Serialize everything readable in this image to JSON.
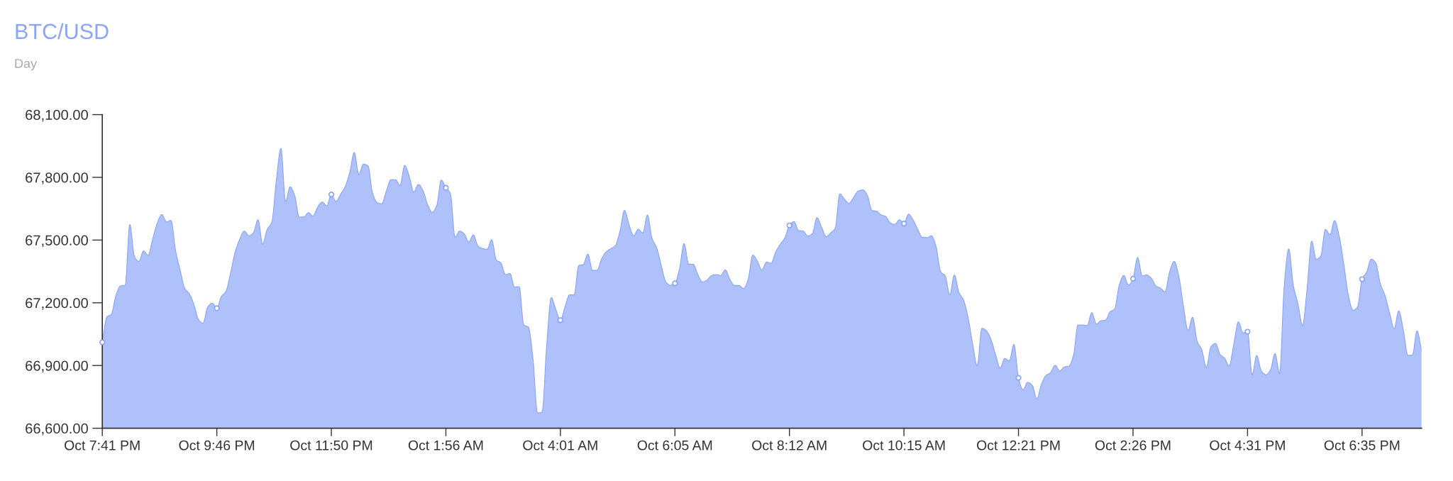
{
  "chart_data": {
    "type": "area",
    "title": "BTC/USD",
    "subtitle": "Day",
    "categories": [
      "Oct 7:41 PM",
      null,
      null,
      null,
      null,
      null,
      null,
      null,
      null,
      null,
      null,
      null,
      null,
      null,
      null,
      null,
      null,
      null,
      null,
      null,
      null,
      null,
      null,
      null,
      null,
      "Oct 9:46 PM",
      null,
      null,
      null,
      null,
      null,
      null,
      null,
      null,
      null,
      null,
      null,
      null,
      null,
      null,
      null,
      null,
      null,
      null,
      null,
      null,
      null,
      null,
      null,
      null,
      "Oct 11:50 PM",
      null,
      null,
      null,
      null,
      null,
      null,
      null,
      null,
      null,
      null,
      null,
      null,
      null,
      null,
      null,
      null,
      null,
      null,
      null,
      null,
      null,
      null,
      null,
      null,
      "Oct 1:56 AM",
      null,
      null,
      null,
      null,
      null,
      null,
      null,
      null,
      null,
      null,
      null,
      null,
      null,
      null,
      null,
      null,
      null,
      null,
      null,
      null,
      null,
      null,
      null,
      null,
      "Oct 4:01 AM",
      null,
      null,
      null,
      null,
      null,
      null,
      null,
      null,
      null,
      null,
      null,
      null,
      null,
      null,
      null,
      null,
      null,
      null,
      null,
      null,
      null,
      null,
      null,
      null,
      "Oct 6:05 AM",
      null,
      null,
      null,
      null,
      null,
      null,
      null,
      null,
      null,
      null,
      null,
      null,
      null,
      null,
      null,
      null,
      null,
      null,
      null,
      null,
      null,
      null,
      null,
      null,
      "Oct 8:12 AM",
      null,
      null,
      null,
      null,
      null,
      null,
      null,
      null,
      null,
      null,
      null,
      null,
      null,
      null,
      null,
      null,
      null,
      null,
      null,
      null,
      null,
      null,
      null,
      null,
      "Oct 10:15 AM",
      null,
      null,
      null,
      null,
      null,
      null,
      null,
      null,
      null,
      null,
      null,
      null,
      null,
      null,
      null,
      null,
      null,
      null,
      null,
      null,
      null,
      null,
      null,
      null,
      "Oct 12:21 PM",
      null,
      null,
      null,
      null,
      null,
      null,
      null,
      null,
      null,
      null,
      null,
      null,
      null,
      null,
      null,
      null,
      null,
      null,
      null,
      null,
      null,
      null,
      null,
      null,
      "Oct 2:26 PM",
      null,
      null,
      null,
      null,
      null,
      null,
      null,
      null,
      null,
      null,
      null,
      null,
      null,
      null,
      null,
      null,
      null,
      null,
      null,
      null,
      null,
      null,
      null,
      null,
      "Oct 4:31 PM",
      null,
      null,
      null,
      null,
      null,
      null,
      null,
      null,
      null,
      null,
      null,
      null,
      null,
      null,
      null,
      null,
      null,
      null,
      null,
      null,
      null,
      null,
      null,
      null,
      "Oct 6:35 PM",
      null,
      null,
      null,
      null,
      null,
      null,
      null,
      null,
      null,
      null,
      null,
      null,
      null
    ],
    "ylim": [
      66600,
      68100
    ],
    "yticks": [
      {
        "value": 66600,
        "label": "66,600.00"
      },
      {
        "value": 66900,
        "label": "66,900.00"
      },
      {
        "value": 67200,
        "label": "67,200.00"
      },
      {
        "value": 67500,
        "label": "67,500.00"
      },
      {
        "value": 67800,
        "label": "67,800.00"
      },
      {
        "value": 68100,
        "label": "68,100.00"
      }
    ],
    "series": [
      {
        "color": "#88a3f8",
        "values": [
          67011,
          67132,
          67146,
          67237,
          67281,
          67284,
          67575,
          67423,
          67398,
          67448,
          67427,
          67505,
          67581,
          67622,
          67587,
          67594,
          67449,
          67356,
          67269,
          67243,
          67191,
          67120,
          67102,
          67179,
          67198,
          67174,
          67230,
          67255,
          67342,
          67442,
          67504,
          67543,
          67521,
          67536,
          67597,
          67480,
          67551,
          67585,
          67788,
          67939,
          67684,
          67755,
          67712,
          67610,
          67611,
          67631,
          67615,
          67657,
          67682,
          67664,
          67718,
          67685,
          67718,
          67755,
          67822,
          67919,
          67814,
          67863,
          67855,
          67724,
          67680,
          67674,
          67734,
          67789,
          67789,
          67761,
          67857,
          67805,
          67730,
          67766,
          67736,
          67671,
          67633,
          67664,
          67787,
          67750,
          67722,
          67513,
          67543,
          67530,
          67491,
          67525,
          67472,
          67460,
          67456,
          67502,
          67405,
          67391,
          67335,
          67340,
          67275,
          67277,
          67094,
          67084,
          66936,
          66673,
          66677,
          66993,
          67225,
          67168,
          67117,
          67180,
          67238,
          67238,
          67378,
          67383,
          67433,
          67355,
          67355,
          67410,
          67444,
          67459,
          67474,
          67542,
          67642,
          67572,
          67521,
          67552,
          67534,
          67620,
          67508,
          67464,
          67380,
          67301,
          67284,
          67293,
          67363,
          67483,
          67385,
          67384,
          67335,
          67300,
          67309,
          67330,
          67335,
          67331,
          67357,
          67312,
          67283,
          67283,
          67268,
          67313,
          67428,
          67399,
          67357,
          67395,
          67389,
          67443,
          67480,
          67511,
          67570,
          67588,
          67546,
          67543,
          67520,
          67530,
          67607,
          67562,
          67517,
          67534,
          67558,
          67721,
          67696,
          67676,
          67704,
          67734,
          67740,
          67714,
          67642,
          67638,
          67621,
          67613,
          67583,
          67575,
          67597,
          67579,
          67624,
          67596,
          67551,
          67513,
          67512,
          67520,
          67469,
          67349,
          67329,
          67238,
          67333,
          67250,
          67213,
          67128,
          67002,
          66898,
          67078,
          67066,
          67024,
          66952,
          66888,
          66934,
          66922,
          67001,
          66841,
          66784,
          66819,
          66806,
          66740,
          66810,
          66852,
          66866,
          66901,
          66874,
          66893,
          66897,
          66948,
          67094,
          67094,
          67091,
          67153,
          67098,
          67114,
          67117,
          67157,
          67170,
          67285,
          67331,
          67284,
          67315,
          67417,
          67330,
          67333,
          67317,
          67281,
          67270,
          67253,
          67349,
          67398,
          67326,
          67185,
          67066,
          67131,
          67017,
          66976,
          66891,
          66989,
          67006,
          66954,
          66935,
          66898,
          67002,
          67109,
          67057,
          67062,
          66855,
          66948,
          66875,
          66856,
          66879,
          66957,
          66862,
          67279,
          67458,
          67282,
          67195,
          67091,
          67269,
          67495,
          67408,
          67425,
          67551,
          67526,
          67593,
          67519,
          67387,
          67237,
          67165,
          67179,
          67313,
          67347,
          67409,
          67390,
          67290,
          67235,
          67152,
          67076,
          67161,
          67070,
          66949,
          66950,
          67066,
          66969
        ]
      },
      {
        "type": "scatter",
        "color": "#ffffff",
        "marker": "circle",
        "values": [
          67011,
          null,
          null,
          null,
          null,
          null,
          null,
          null,
          null,
          null,
          null,
          null,
          null,
          null,
          null,
          null,
          null,
          null,
          null,
          null,
          null,
          null,
          null,
          null,
          null,
          67174,
          null,
          null,
          null,
          null,
          null,
          null,
          null,
          null,
          null,
          null,
          null,
          null,
          null,
          null,
          null,
          null,
          null,
          null,
          null,
          null,
          null,
          null,
          null,
          null,
          67718,
          null,
          null,
          null,
          null,
          null,
          null,
          null,
          null,
          null,
          null,
          null,
          null,
          null,
          null,
          null,
          null,
          null,
          null,
          null,
          null,
          null,
          null,
          null,
          null,
          67750,
          null,
          null,
          null,
          null,
          null,
          null,
          null,
          null,
          null,
          null,
          null,
          null,
          null,
          null,
          null,
          null,
          null,
          null,
          null,
          null,
          null,
          null,
          null,
          null,
          67117,
          null,
          null,
          null,
          null,
          null,
          null,
          null,
          null,
          null,
          null,
          null,
          null,
          null,
          null,
          null,
          null,
          null,
          null,
          null,
          null,
          null,
          null,
          null,
          null,
          67293,
          null,
          null,
          null,
          null,
          null,
          null,
          null,
          null,
          null,
          null,
          null,
          null,
          null,
          null,
          null,
          null,
          null,
          null,
          null,
          null,
          null,
          null,
          null,
          null,
          67570,
          null,
          null,
          null,
          null,
          null,
          null,
          null,
          null,
          null,
          null,
          null,
          null,
          null,
          null,
          null,
          null,
          null,
          null,
          null,
          null,
          null,
          null,
          null,
          null,
          67579,
          null,
          null,
          null,
          null,
          null,
          null,
          null,
          null,
          null,
          null,
          null,
          null,
          null,
          null,
          null,
          null,
          null,
          null,
          null,
          null,
          null,
          null,
          null,
          null,
          66841,
          null,
          null,
          null,
          null,
          null,
          null,
          null,
          null,
          null,
          null,
          null,
          null,
          null,
          null,
          null,
          null,
          null,
          null,
          null,
          null,
          null,
          null,
          null,
          null,
          67315,
          null,
          null,
          null,
          null,
          null,
          null,
          null,
          null,
          null,
          null,
          null,
          null,
          null,
          null,
          null,
          null,
          null,
          null,
          null,
          null,
          null,
          null,
          null,
          null,
          67062,
          null,
          null,
          null,
          null,
          null,
          null,
          null,
          null,
          null,
          null,
          null,
          null,
          null,
          null,
          null,
          null,
          null,
          null,
          null,
          null,
          null,
          null,
          null,
          null,
          67313,
          null,
          null,
          null,
          null,
          null,
          null,
          null,
          null,
          null,
          null,
          null,
          null,
          null
        ]
      }
    ]
  }
}
